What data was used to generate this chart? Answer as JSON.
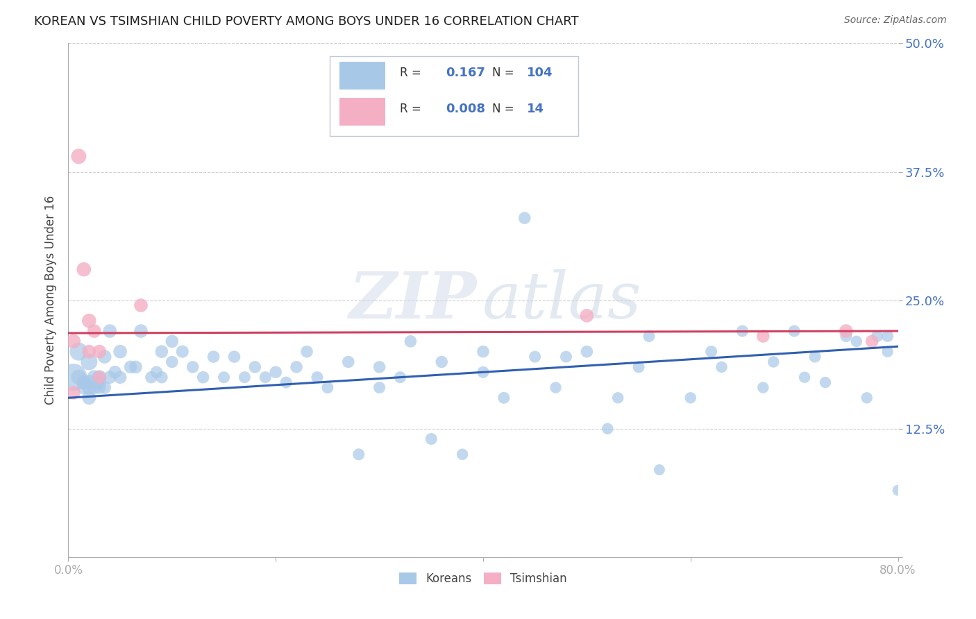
{
  "title": "KOREAN VS TSIMSHIAN CHILD POVERTY AMONG BOYS UNDER 16 CORRELATION CHART",
  "source": "Source: ZipAtlas.com",
  "ylabel": "Child Poverty Among Boys Under 16",
  "xlim": [
    0.0,
    0.8
  ],
  "ylim": [
    0.0,
    0.5
  ],
  "xticks": [
    0.0,
    0.2,
    0.4,
    0.6,
    0.8
  ],
  "xticklabels": [
    "0.0%",
    "",
    "",
    "",
    "80.0%"
  ],
  "yticks": [
    0.0,
    0.125,
    0.25,
    0.375,
    0.5
  ],
  "yticklabels": [
    "",
    "12.5%",
    "25.0%",
    "37.5%",
    "50.0%"
  ],
  "korean_R": 0.167,
  "korean_N": 104,
  "tsimshian_R": 0.008,
  "tsimshian_N": 14,
  "korean_color": "#a8c8e8",
  "tsimshian_color": "#f4afc4",
  "korean_line_color": "#3060b0",
  "tsimshian_line_color": "#d04060",
  "legend_label_korean": "Koreans",
  "legend_label_tsimshian": "Tsimshian",
  "korean_x": [
    0.005,
    0.01,
    0.01,
    0.015,
    0.015,
    0.02,
    0.02,
    0.02,
    0.02,
    0.025,
    0.025,
    0.03,
    0.03,
    0.03,
    0.035,
    0.035,
    0.04,
    0.04,
    0.045,
    0.05,
    0.05,
    0.06,
    0.065,
    0.07,
    0.08,
    0.085,
    0.09,
    0.09,
    0.1,
    0.1,
    0.11,
    0.12,
    0.13,
    0.14,
    0.15,
    0.16,
    0.17,
    0.18,
    0.19,
    0.2,
    0.21,
    0.22,
    0.23,
    0.24,
    0.25,
    0.27,
    0.28,
    0.3,
    0.3,
    0.32,
    0.33,
    0.35,
    0.36,
    0.38,
    0.4,
    0.4,
    0.42,
    0.44,
    0.45,
    0.47,
    0.48,
    0.5,
    0.52,
    0.53,
    0.55,
    0.56,
    0.57,
    0.6,
    0.62,
    0.63,
    0.65,
    0.67,
    0.68,
    0.7,
    0.71,
    0.72,
    0.73,
    0.75,
    0.76,
    0.77,
    0.78,
    0.79,
    0.79,
    0.8
  ],
  "korean_y": [
    0.175,
    0.2,
    0.175,
    0.17,
    0.165,
    0.19,
    0.17,
    0.165,
    0.155,
    0.175,
    0.165,
    0.175,
    0.17,
    0.165,
    0.195,
    0.165,
    0.22,
    0.175,
    0.18,
    0.2,
    0.175,
    0.185,
    0.185,
    0.22,
    0.175,
    0.18,
    0.2,
    0.175,
    0.21,
    0.19,
    0.2,
    0.185,
    0.175,
    0.195,
    0.175,
    0.195,
    0.175,
    0.185,
    0.175,
    0.18,
    0.17,
    0.185,
    0.2,
    0.175,
    0.165,
    0.19,
    0.1,
    0.185,
    0.165,
    0.175,
    0.21,
    0.115,
    0.19,
    0.1,
    0.2,
    0.18,
    0.155,
    0.33,
    0.195,
    0.165,
    0.195,
    0.2,
    0.125,
    0.155,
    0.185,
    0.215,
    0.085,
    0.155,
    0.2,
    0.185,
    0.22,
    0.165,
    0.19,
    0.22,
    0.175,
    0.195,
    0.17,
    0.215,
    0.21,
    0.155,
    0.215,
    0.2,
    0.215,
    0.065
  ],
  "korean_size": [
    800,
    350,
    250,
    220,
    200,
    300,
    250,
    220,
    200,
    220,
    200,
    220,
    200,
    180,
    200,
    180,
    200,
    180,
    180,
    200,
    180,
    180,
    180,
    200,
    160,
    160,
    180,
    160,
    180,
    160,
    170,
    160,
    160,
    160,
    150,
    160,
    150,
    160,
    150,
    160,
    150,
    160,
    160,
    150,
    150,
    160,
    150,
    160,
    150,
    150,
    160,
    150,
    160,
    140,
    160,
    150,
    150,
    160,
    150,
    140,
    150,
    160,
    140,
    140,
    150,
    150,
    130,
    140,
    150,
    140,
    150,
    140,
    140,
    150,
    140,
    150,
    140,
    150,
    140,
    140,
    150,
    140,
    150,
    130
  ],
  "tsimshian_x": [
    0.005,
    0.005,
    0.01,
    0.015,
    0.02,
    0.02,
    0.025,
    0.03,
    0.03,
    0.07,
    0.5,
    0.67,
    0.75,
    0.775
  ],
  "tsimshian_y": [
    0.21,
    0.16,
    0.39,
    0.28,
    0.23,
    0.2,
    0.22,
    0.2,
    0.175,
    0.245,
    0.235,
    0.215,
    0.22,
    0.21
  ],
  "tsimshian_size": [
    220,
    200,
    250,
    220,
    220,
    200,
    200,
    200,
    180,
    200,
    200,
    180,
    200,
    180
  ],
  "korean_line_x": [
    0.0,
    0.8
  ],
  "korean_line_y": [
    0.155,
    0.205
  ],
  "tsimshian_line_x": [
    0.0,
    0.8
  ],
  "tsimshian_line_y": [
    0.218,
    0.22
  ]
}
